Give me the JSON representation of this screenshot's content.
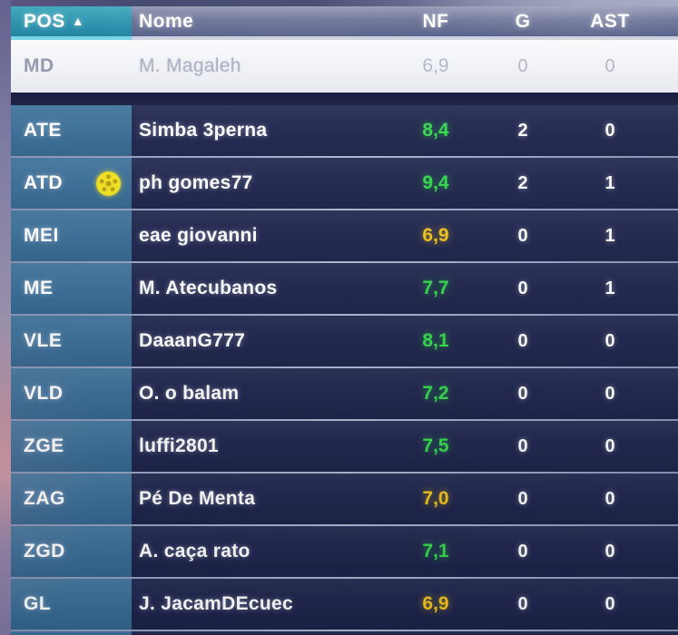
{
  "header": {
    "pos": "POS",
    "sort_indicator": "▲",
    "name": "Nome",
    "nf": "NF",
    "g": "G",
    "ast": "AST"
  },
  "colors": {
    "rating_green": "#35d94c",
    "rating_yellow": "#f2c31c",
    "pos_header_teal": "#2590ab",
    "pos_header_underline": "#72d4e7",
    "pos_cell_blue": "#3a6d96",
    "row_navy": "#21274f",
    "selected_row_white": "#f2f3f7",
    "motm_ball_yellow": "#f2e11f"
  },
  "rows": [
    {
      "pos": "MD",
      "name": "M. Magaleh",
      "nf": "6,9",
      "nf_color": "neutral",
      "g": "0",
      "ast": "0",
      "selected": true,
      "icon": null
    },
    {
      "pos": "ATE",
      "name": "Simba 3perna",
      "nf": "8,4",
      "nf_color": "green",
      "g": "2",
      "ast": "0",
      "selected": false,
      "icon": null
    },
    {
      "pos": "ATD",
      "name": "ph gomes77",
      "nf": "9,4",
      "nf_color": "green",
      "g": "2",
      "ast": "1",
      "selected": false,
      "icon": "motm-ball"
    },
    {
      "pos": "MEI",
      "name": "eae giovanni",
      "nf": "6,9",
      "nf_color": "yellow",
      "g": "0",
      "ast": "1",
      "selected": false,
      "icon": null
    },
    {
      "pos": "ME",
      "name": "M. Atecubanos",
      "nf": "7,7",
      "nf_color": "green",
      "g": "0",
      "ast": "1",
      "selected": false,
      "icon": null
    },
    {
      "pos": "VLE",
      "name": "DaaanG777",
      "nf": "8,1",
      "nf_color": "green",
      "g": "0",
      "ast": "0",
      "selected": false,
      "icon": null
    },
    {
      "pos": "VLD",
      "name": "O. o balam",
      "nf": "7,2",
      "nf_color": "green",
      "g": "0",
      "ast": "0",
      "selected": false,
      "icon": null
    },
    {
      "pos": "ZGE",
      "name": "luffi2801",
      "nf": "7,5",
      "nf_color": "green",
      "g": "0",
      "ast": "0",
      "selected": false,
      "icon": null
    },
    {
      "pos": "ZAG",
      "name": "Pé De Menta",
      "nf": "7,0",
      "nf_color": "yellow",
      "g": "0",
      "ast": "0",
      "selected": false,
      "icon": null
    },
    {
      "pos": "ZGD",
      "name": "A. caça rato",
      "nf": "7,1",
      "nf_color": "green",
      "g": "0",
      "ast": "0",
      "selected": false,
      "icon": null
    },
    {
      "pos": "GL",
      "name": "J. JacamDEcuec",
      "nf": "6,9",
      "nf_color": "yellow",
      "g": "0",
      "ast": "0",
      "selected": false,
      "icon": null
    }
  ]
}
